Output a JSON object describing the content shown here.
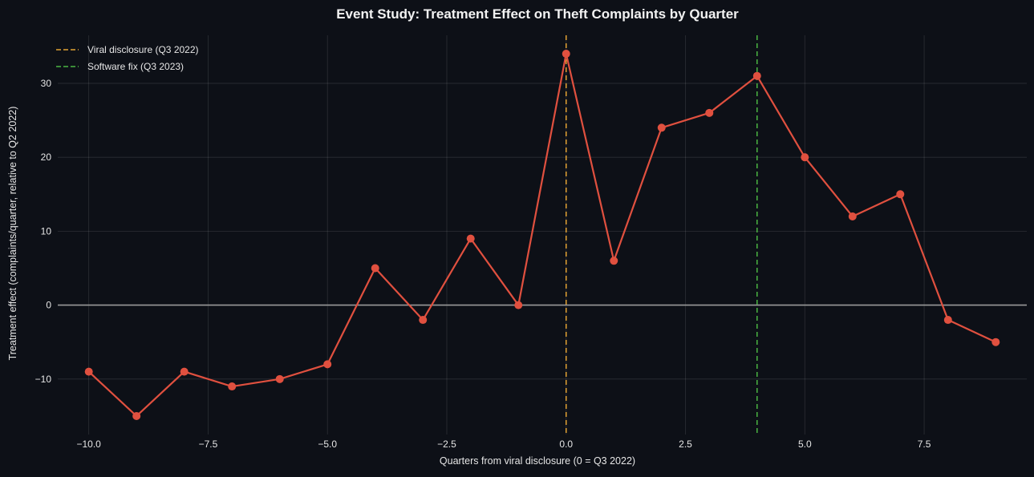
{
  "chart_data": {
    "type": "line",
    "title": "Event Study: Treatment Effect on Theft Complaints by Quarter",
    "xlabel": "Quarters from viral disclosure (0 = Q3 2022)",
    "ylabel": "Treatment effect (complaints/quarter, relative to Q2 2022)",
    "xlim": [
      -10.65,
      9.65
    ],
    "ylim": [
      -17.5,
      36.5
    ],
    "grid": true,
    "legend_position": "top-left",
    "x_ticks": [
      -10.0,
      -7.5,
      -5.0,
      -2.5,
      0.0,
      2.5,
      5.0,
      7.5
    ],
    "x_tick_labels": [
      "−10.0",
      "−7.5",
      "−5.0",
      "−2.5",
      "0.0",
      "2.5",
      "5.0",
      "7.5"
    ],
    "y_ticks": [
      -10,
      0,
      10,
      20,
      30
    ],
    "y_tick_labels": [
      "−10",
      "0",
      "10",
      "20",
      "30"
    ],
    "series": [
      {
        "color": "#e0503f",
        "x": [
          -10,
          -9,
          -8,
          -7,
          -6,
          -5,
          -4,
          -3,
          -2,
          -1,
          0,
          1,
          2,
          3,
          4,
          5,
          6,
          7,
          8,
          9
        ],
        "values": [
          -9,
          -15,
          -9,
          -11,
          -10,
          -8,
          5,
          -2,
          9,
          0,
          34,
          6,
          24,
          26,
          31,
          20,
          12,
          15,
          -2,
          -5
        ]
      }
    ],
    "reference_lines": [
      {
        "orientation": "horizontal",
        "value": 0,
        "color": "#9a9a9a",
        "style": "solid"
      },
      {
        "orientation": "vertical",
        "value": 0,
        "label": "Viral disclosure (Q3 2022)",
        "color": "#e2a234",
        "style": "dashed"
      },
      {
        "orientation": "vertical",
        "value": 4,
        "label": "Software fix (Q3 2023)",
        "color": "#4bb543",
        "style": "dashed"
      }
    ]
  }
}
